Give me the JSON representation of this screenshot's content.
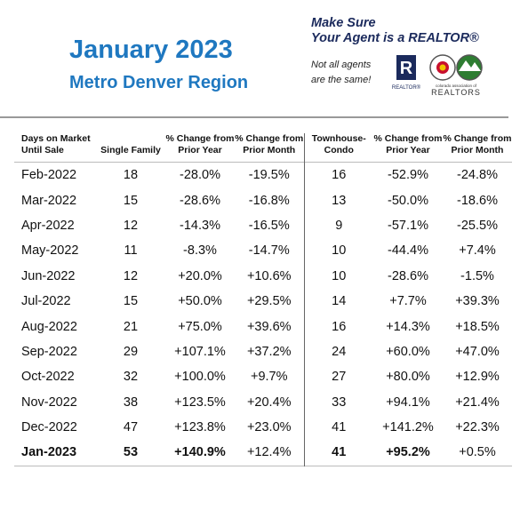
{
  "header": {
    "title": "January 2023",
    "subtitle": "Metro Denver Region",
    "slogan": [
      "Make Sure",
      "Your Agent is a REALTOR®"
    ],
    "tagline": [
      "Not all agents",
      "are the same!"
    ],
    "logo_r_caption": "REALTOR®",
    "logo_co_caption": [
      "colorado association of",
      "REALTORS"
    ]
  },
  "table": {
    "header": [
      "Days on Market Until Sale",
      "Single Family",
      "% Change from Prior Year",
      "% Change from Prior Month",
      "Townhouse-Condo",
      "% Change from Prior Year",
      "% Change from Prior Month"
    ],
    "rows": [
      [
        "Feb-2022",
        "18",
        "-28.0%",
        "-19.5%",
        "16",
        "-52.9%",
        "-24.8%"
      ],
      [
        "Mar-2022",
        "15",
        "-28.6%",
        "-16.8%",
        "13",
        "-50.0%",
        "-18.6%"
      ],
      [
        "Apr-2022",
        "12",
        "-14.3%",
        "-16.5%",
        "9",
        "-57.1%",
        "-25.5%"
      ],
      [
        "May-2022",
        "11",
        "-8.3%",
        "-14.7%",
        "10",
        "-44.4%",
        "+7.4%"
      ],
      [
        "Jun-2022",
        "12",
        "+20.0%",
        "+10.6%",
        "10",
        "-28.6%",
        "-1.5%"
      ],
      [
        "Jul-2022",
        "15",
        "+50.0%",
        "+29.5%",
        "14",
        "+7.7%",
        "+39.3%"
      ],
      [
        "Aug-2022",
        "21",
        "+75.0%",
        "+39.6%",
        "16",
        "+14.3%",
        "+18.5%"
      ],
      [
        "Sep-2022",
        "29",
        "+107.1%",
        "+37.2%",
        "24",
        "+60.0%",
        "+47.0%"
      ],
      [
        "Oct-2022",
        "32",
        "+100.0%",
        "+9.7%",
        "27",
        "+80.0%",
        "+12.9%"
      ],
      [
        "Nov-2022",
        "38",
        "+123.5%",
        "+20.4%",
        "33",
        "+94.1%",
        "+21.4%"
      ],
      [
        "Dec-2022",
        "47",
        "+123.8%",
        "+23.0%",
        "41",
        "+141.2%",
        "+22.3%"
      ],
      [
        "Jan-2023",
        "53",
        "+140.9%",
        "+12.4%",
        "41",
        "+95.2%",
        "+0.5%"
      ]
    ]
  }
}
